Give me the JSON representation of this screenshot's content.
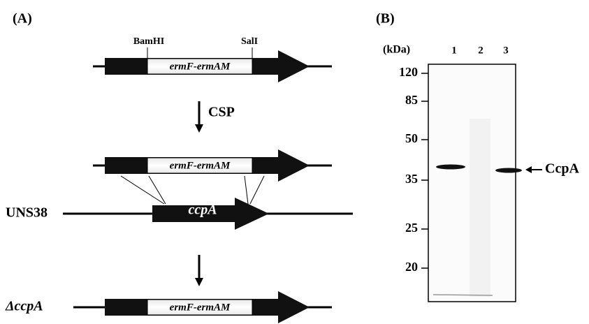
{
  "panel_a": {
    "label": "(A)",
    "sites": [
      "BamHI",
      "SalI"
    ],
    "inserts": [
      "ermF-ermAM",
      "ermF-ermAM",
      "ermF-ermAM"
    ],
    "step_label": "CSP",
    "strain": "UNS38",
    "gene": "ccpA",
    "mutant": "ΔccpA"
  },
  "panel_b": {
    "label": "(B)",
    "unit": "(kDa)",
    "lanes": [
      "1",
      "2",
      "3"
    ],
    "markers": [
      120,
      85,
      50,
      35,
      25,
      20
    ],
    "band_label": "CcpA"
  }
}
